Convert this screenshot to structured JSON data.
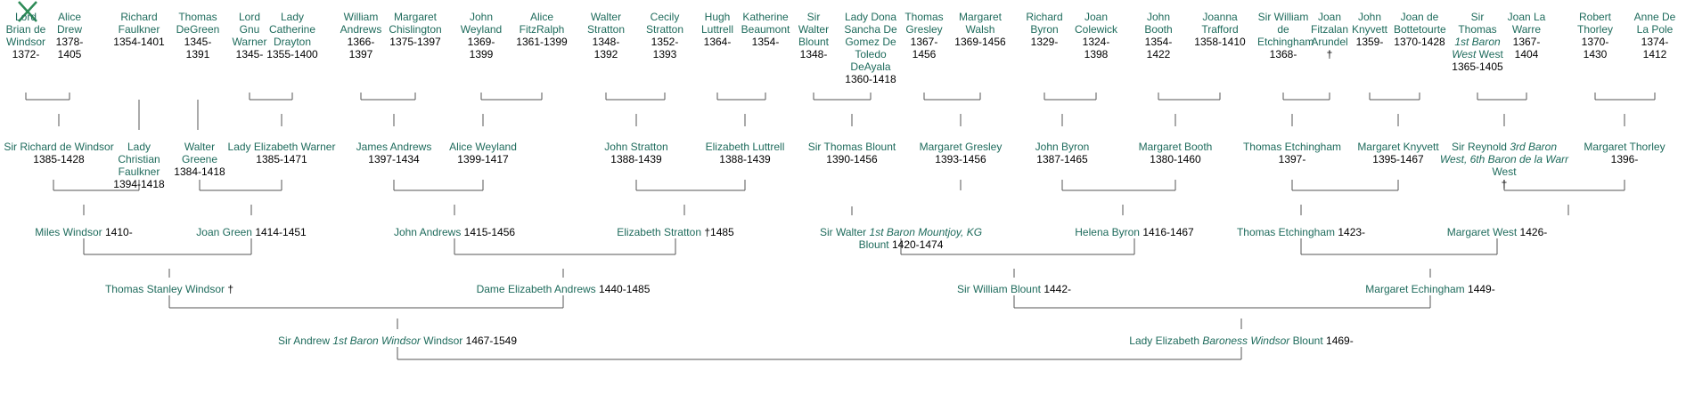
{
  "accent_color": "#1e6b5c",
  "people": {
    "g0": [
      {
        "id": "p01",
        "name": "Lord Brian de Windsor",
        "dates": "1372-"
      },
      {
        "id": "p02",
        "name": "Alice Drew",
        "dates": "1378-1405"
      },
      {
        "id": "p03",
        "name": "Richard Faulkner",
        "dates": "1354-1401"
      },
      {
        "id": "p04",
        "name": "Thomas DeGreen",
        "dates": "1345-1391"
      },
      {
        "id": "p05",
        "name": "Lord Gnu Warner",
        "dates": "1345-"
      },
      {
        "id": "p06",
        "name": "Lady Catherine Drayton",
        "dates": "1355-1400"
      },
      {
        "id": "p07",
        "name": "William Andrews",
        "dates": "1366-1397"
      },
      {
        "id": "p08",
        "name": "Margaret Chislington",
        "dates": "1375-1397"
      },
      {
        "id": "p09",
        "name": "John Weyland",
        "dates": "1369-1399"
      },
      {
        "id": "p10",
        "name": "Alice FitzRalph",
        "dates": "1361-1399"
      },
      {
        "id": "p11",
        "name": "Walter Stratton",
        "dates": "1348-1392"
      },
      {
        "id": "p12",
        "name": "Cecily Stratton",
        "dates": "1352-1393"
      },
      {
        "id": "p13",
        "name": "Hugh Luttrell",
        "dates": "1364-"
      },
      {
        "id": "p14",
        "name": "Katherine Beaumont",
        "dates": "1354-"
      },
      {
        "id": "p15",
        "name": "Sir Walter Blount",
        "dates": "1348-"
      },
      {
        "id": "p16",
        "name": "Lady Dona Sancha De Gomez De Toledo DeAyala",
        "dates": "1360-1418"
      },
      {
        "id": "p17",
        "name": "Thomas Gresley",
        "dates": "1367-1456"
      },
      {
        "id": "p18",
        "name": "Margaret Walsh",
        "dates": "1369-1456"
      },
      {
        "id": "p19",
        "name": "Richard Byron",
        "dates": "1329-"
      },
      {
        "id": "p20",
        "name": "Joan Colewick",
        "dates": "1324-1398"
      },
      {
        "id": "p21",
        "name": "John Booth",
        "dates": "1354-1422"
      },
      {
        "id": "p22",
        "name": "Joanna Trafford",
        "dates": "1358-1410"
      },
      {
        "id": "p23",
        "name": "Sir William de Etchingham",
        "dates": "1368-"
      },
      {
        "id": "p24",
        "name": "Joan Fitzalan Arundel",
        "dates": "†"
      },
      {
        "id": "p25",
        "name": "John Knyvett",
        "dates": "1359-"
      },
      {
        "id": "p26",
        "name": "Joan de Bottetourte",
        "dates": "1370-1428"
      },
      {
        "id": "p27",
        "name": "Sir Thomas",
        "title": "1st Baron West",
        "name2": "West",
        "dates": "1365-1405"
      },
      {
        "id": "p28",
        "name": "Joan La Warre",
        "dates": "1367-1404"
      },
      {
        "id": "p29",
        "name": "Robert Thorley",
        "dates": "1370-1430"
      },
      {
        "id": "p30",
        "name": "Anne De La Pole",
        "dates": "1374-1412"
      }
    ],
    "g1": [
      {
        "id": "q01",
        "name": "Sir Richard de Windsor",
        "dates": "1385-1428"
      },
      {
        "id": "q02",
        "name": "Lady Christian Faulkner",
        "dates": "1394-1418"
      },
      {
        "id": "q03",
        "name": "Walter Greene",
        "dates": "1384-1418"
      },
      {
        "id": "q04",
        "name": "Lady Elizabeth Warner",
        "dates": "1385-1471"
      },
      {
        "id": "q05",
        "name": "James Andrews",
        "dates": "1397-1434"
      },
      {
        "id": "q06",
        "name": "Alice Weyland",
        "dates": "1399-1417"
      },
      {
        "id": "q07",
        "name": "John Stratton",
        "dates": "1388-1439"
      },
      {
        "id": "q08",
        "name": "Elizabeth Luttrell",
        "dates": "1388-1439"
      },
      {
        "id": "q09",
        "name": "Sir Thomas Blount",
        "dates": "1390-1456"
      },
      {
        "id": "q10",
        "name": "Margaret Gresley",
        "dates": "1393-1456"
      },
      {
        "id": "q11",
        "name": "John Byron",
        "dates": "1387-1465"
      },
      {
        "id": "q12",
        "name": "Margaret Booth",
        "dates": "1380-1460"
      },
      {
        "id": "q13",
        "name": "Thomas Etchingham",
        "dates": "1397-"
      },
      {
        "id": "q14",
        "name": "Margaret Knyvett",
        "dates": "1395-1467"
      },
      {
        "id": "q15",
        "name": "Sir Reynold",
        "title": "3rd Baron West, 6th Baron de la Warr",
        "name2": "West",
        "dates": "†"
      },
      {
        "id": "q16",
        "name": "Margaret Thorley",
        "dates": "1396-"
      }
    ],
    "g2": [
      {
        "id": "r01",
        "name": "Miles Windsor",
        "dates": "1410-"
      },
      {
        "id": "r02",
        "name": "Joan Green",
        "dates": "1414-1451"
      },
      {
        "id": "r03",
        "name": "John Andrews",
        "dates": "1415-1456"
      },
      {
        "id": "r04",
        "name": "Elizabeth Stratton",
        "dates": "†1485"
      },
      {
        "id": "r05",
        "name": "Sir Walter",
        "title": "1st Baron Mountjoy, KG",
        "name2": "Blount",
        "dates": "1420-1474"
      },
      {
        "id": "r06",
        "name": "Helena Byron",
        "dates": "1416-1467"
      },
      {
        "id": "r07",
        "name": "Thomas Etchingham",
        "dates": "1423-"
      },
      {
        "id": "r08",
        "name": "Margaret West",
        "dates": "1426-"
      }
    ],
    "g3": [
      {
        "id": "s01",
        "name": "Thomas Stanley Windsor",
        "dates": "†"
      },
      {
        "id": "s02",
        "name": "Dame Elizabeth Andrews",
        "dates": "1440-1485"
      },
      {
        "id": "s03",
        "name": "Sir William Blount",
        "dates": "1442-"
      },
      {
        "id": "s04",
        "name": "Margaret Echingham",
        "dates": "1449-"
      }
    ],
    "g4": [
      {
        "id": "t01",
        "name": "Sir Andrew",
        "title": "1st Baron Windsor",
        "name2": "Windsor",
        "dates": "1467-1549"
      },
      {
        "id": "t02",
        "name": "Lady Elizabeth",
        "title": "Baroness Windsor",
        "name2": "Blount",
        "dates": "1469-"
      }
    ]
  }
}
